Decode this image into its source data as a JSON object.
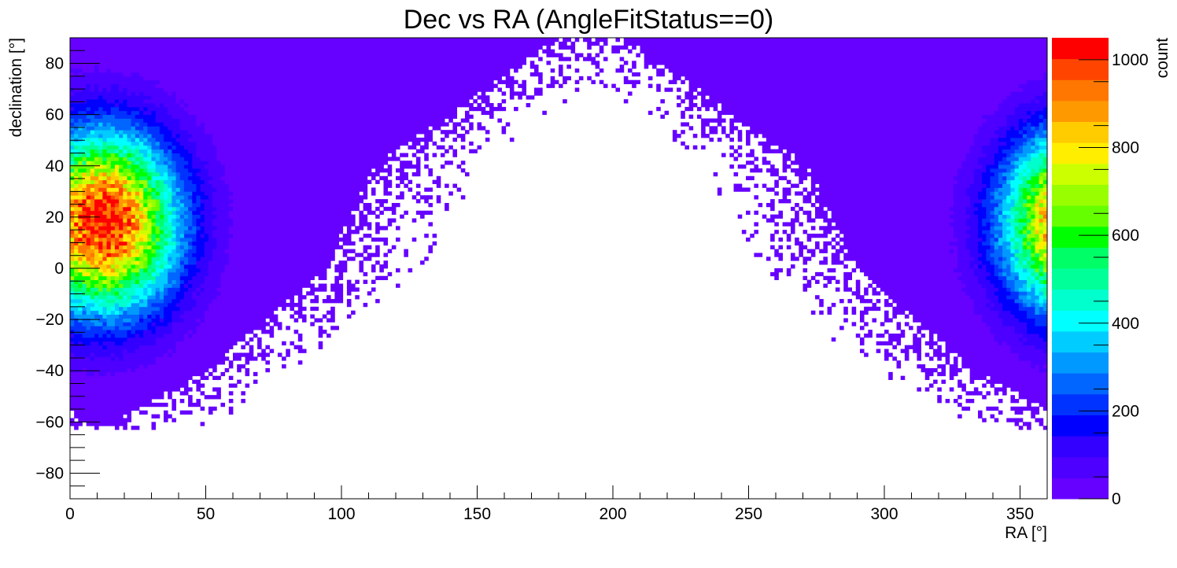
{
  "chart_data": {
    "type": "heatmap",
    "title": "Dec vs RA (AngleFitStatus==0)",
    "xlabel": "RA [°]",
    "ylabel": "declination [°]",
    "zlabel": "count",
    "xlim": [
      0,
      360
    ],
    "ylim": [
      -90,
      90
    ],
    "zlim": [
      0,
      1050
    ],
    "x_ticks": [
      0,
      50,
      100,
      150,
      200,
      250,
      300,
      350
    ],
    "y_ticks": [
      -80,
      -60,
      -40,
      -20,
      0,
      20,
      40,
      60,
      80
    ],
    "z_ticks": [
      0,
      200,
      400,
      600,
      800,
      1000
    ],
    "tick_labels": {
      "x": [
        "0",
        "50",
        "100",
        "150",
        "200",
        "250",
        "300",
        "350"
      ],
      "y": [
        "−80",
        "−60",
        "−40",
        "−20",
        "0",
        "20",
        "40",
        "60",
        "80"
      ],
      "z": [
        "0",
        "200",
        "400",
        "600",
        "800",
        "1000"
      ]
    },
    "palette": [
      "#6600ff",
      "#4d00ff",
      "#3300ff",
      "#0000ff",
      "#0033ff",
      "#0066ff",
      "#0099ff",
      "#00ccff",
      "#00ffff",
      "#00ffcc",
      "#00ff99",
      "#00ff66",
      "#00ff00",
      "#66ff00",
      "#99ff00",
      "#ccff00",
      "#ffee00",
      "#ffcc00",
      "#ff9900",
      "#ff7700",
      "#ff4400",
      "#ff0000"
    ],
    "peak": {
      "ra": 12,
      "dec": 18,
      "count": 1050
    },
    "grid": false,
    "legend": "colorbar-right"
  }
}
